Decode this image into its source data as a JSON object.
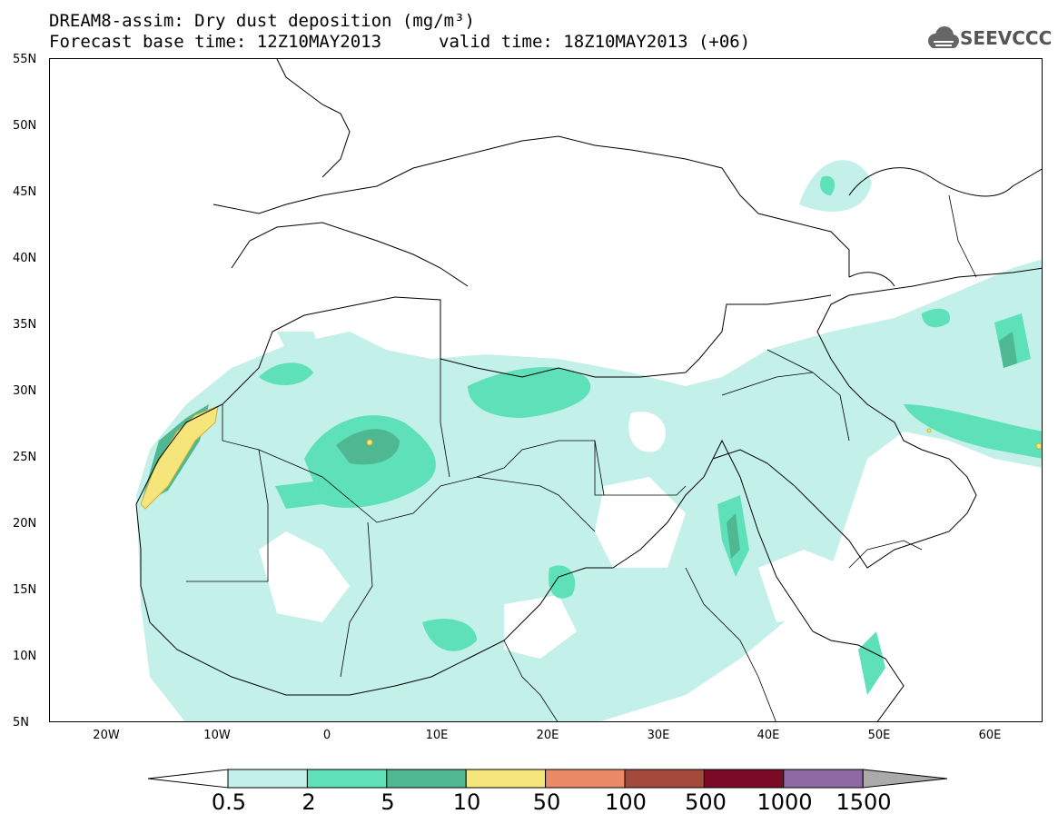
{
  "header": {
    "title": "DREAM8-assim: Dry dust deposition (mg/m³)",
    "base_time": "Forecast base time: 12Z10MAY2013",
    "valid_time": "valid time: 18Z10MAY2013 (+06)"
  },
  "logo": {
    "text": "SEEVCCC",
    "icon": "cloud-icon"
  },
  "map": {
    "lat_labels": [
      "55N",
      "50N",
      "45N",
      "40N",
      "35N",
      "30N",
      "25N",
      "20N",
      "15N",
      "10N",
      "5N"
    ],
    "lon_labels": [
      "20W",
      "10W",
      "0",
      "10E",
      "20E",
      "30E",
      "40E",
      "50E",
      "60E"
    ],
    "lon_range": [
      -25,
      65
    ],
    "lat_range": [
      5,
      55
    ],
    "shade_colors": [
      "#c3f0e8",
      "#5ee0b8",
      "#4fb791",
      "#f5e57a",
      "#eb8a66",
      "#a34a3d",
      "#7a0a25",
      "#8d6aa3",
      "#aaaaaa"
    ]
  },
  "colorbar": {
    "levels": [
      "0.5",
      "2",
      "5",
      "10",
      "50",
      "100",
      "500",
      "1000",
      "1500"
    ],
    "colors": [
      "#ffffff",
      "#c3f0e8",
      "#5ee0b8",
      "#4fb791",
      "#f5e57a",
      "#eb8a66",
      "#a34a3d",
      "#7a0a25",
      "#8d6aa3",
      "#aaaaaa"
    ]
  }
}
